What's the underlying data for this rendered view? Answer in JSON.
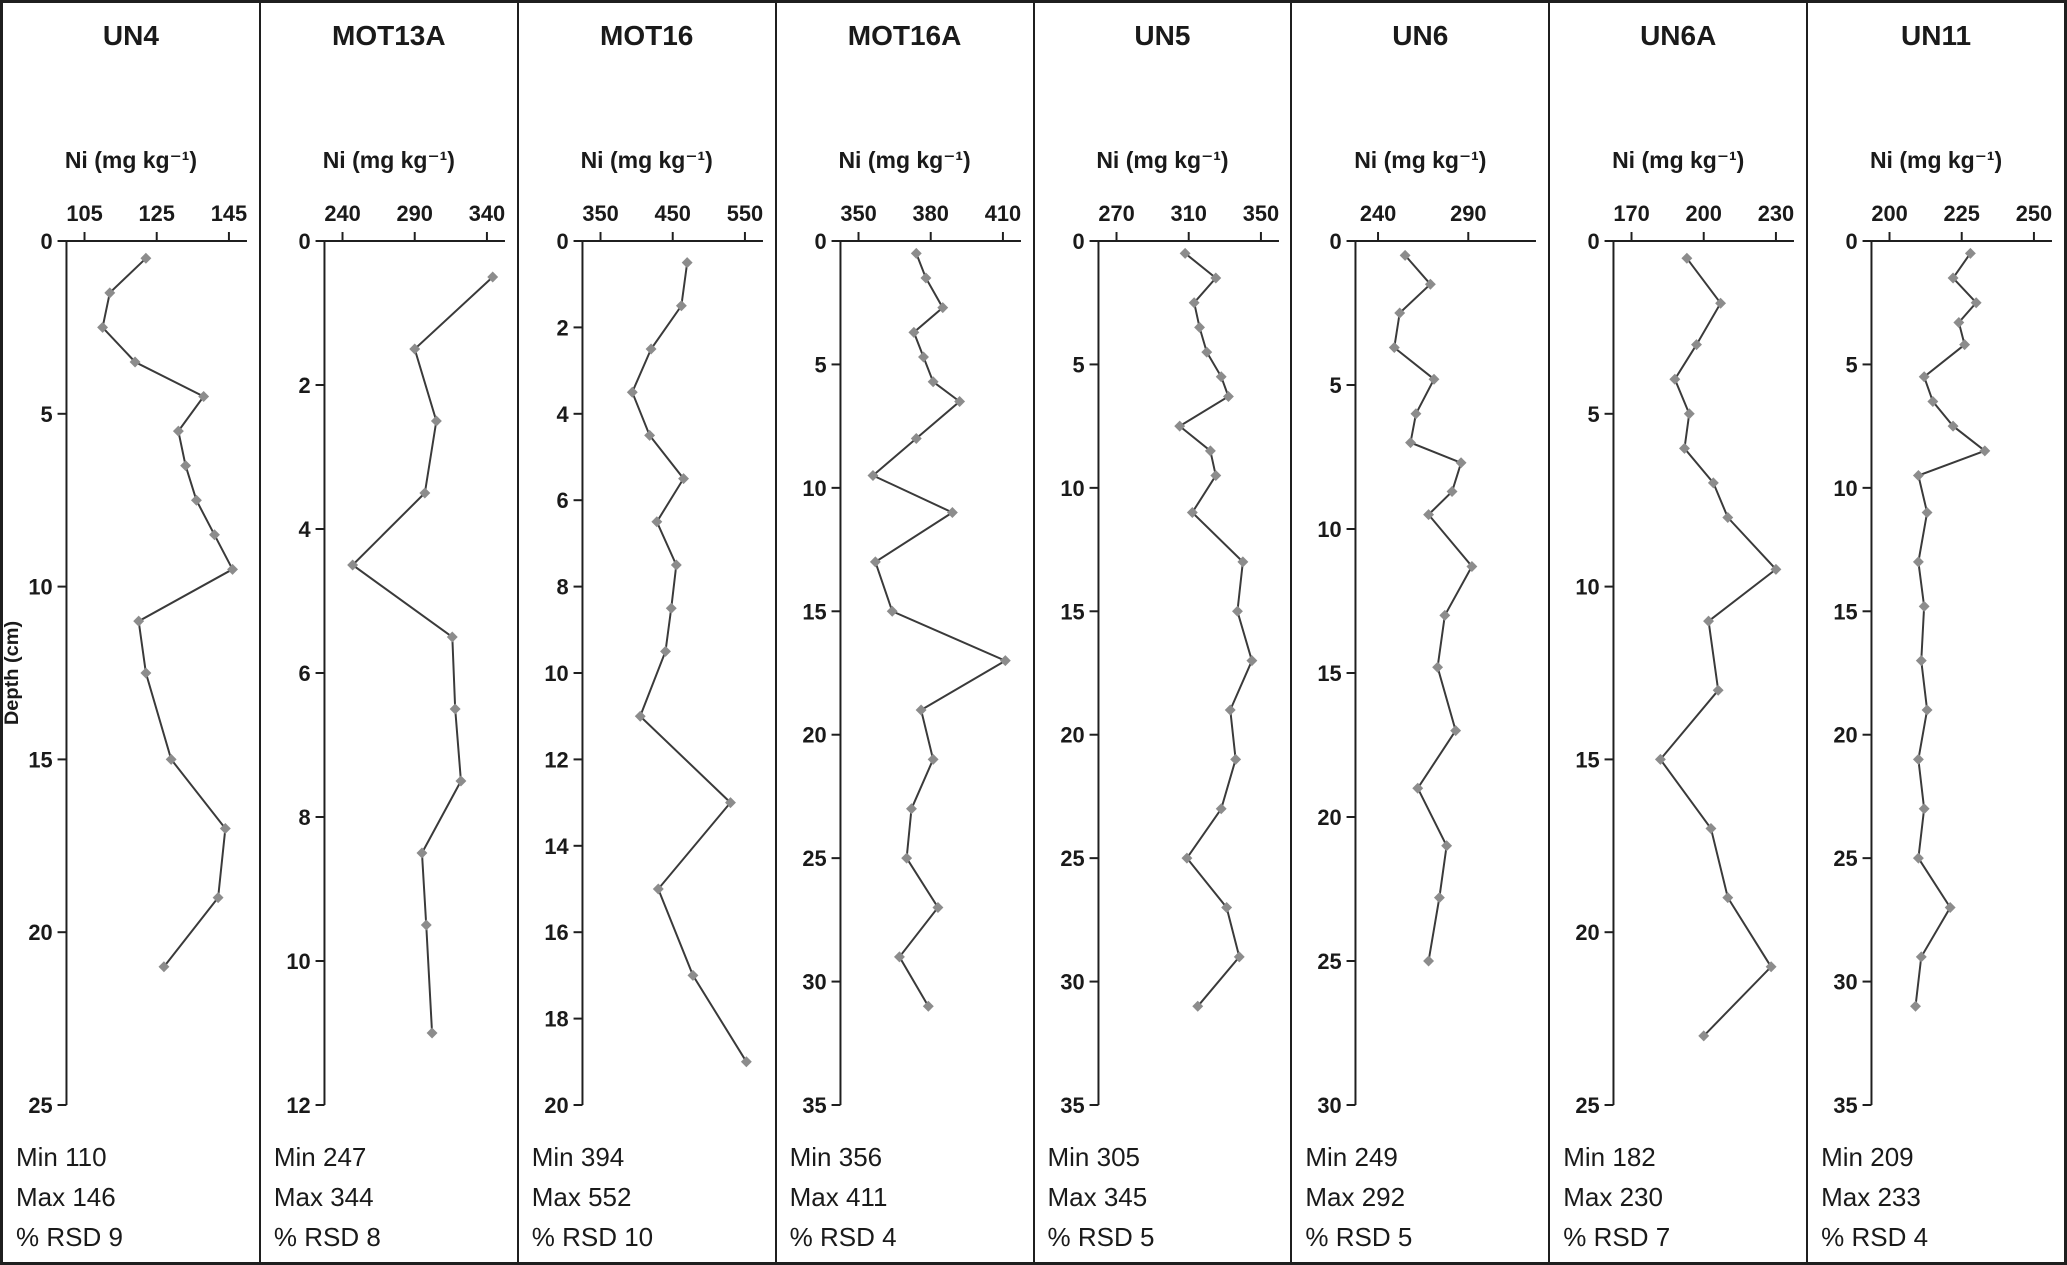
{
  "colors": {
    "axis": "#1f1f1f",
    "line": "#3a3a3a",
    "marker": "#8c8c8c",
    "border": "#1f1f1f",
    "background": "#ffffff"
  },
  "chart_data": [
    {
      "type": "line",
      "title": "UN4",
      "xlabel": "Ni (mg kg⁻¹)",
      "ylabel": "Depth (cm)",
      "x_ticks": [
        105,
        125,
        145
      ],
      "xlim": [
        100,
        150
      ],
      "y_ticks": [
        0,
        5,
        10,
        15,
        20,
        25
      ],
      "ylim": [
        0,
        25
      ],
      "depth": [
        0.5,
        1.5,
        2.5,
        3.5,
        4.5,
        5.5,
        6.5,
        7.5,
        8.5,
        9.5,
        11,
        12.5,
        15,
        17,
        19,
        21
      ],
      "ni": [
        122,
        112,
        110,
        119,
        138,
        131,
        133,
        136,
        141,
        146,
        120,
        122,
        129,
        144,
        142,
        127
      ],
      "stats": {
        "min": "Min 110",
        "max": "Max 146",
        "rsd": "% RSD 9"
      }
    },
    {
      "type": "line",
      "title": "MOT13A",
      "xlabel": "Ni (mg kg⁻¹)",
      "x_ticks": [
        240,
        290,
        340
      ],
      "xlim": [
        227.5,
        352.5
      ],
      "y_ticks": [
        0,
        2,
        4,
        6,
        8,
        10,
        12
      ],
      "ylim": [
        0,
        12
      ],
      "depth": [
        0.5,
        1.5,
        2.5,
        3.5,
        4.5,
        5.5,
        6.5,
        7.5,
        8.5,
        9.5,
        11
      ],
      "ni": [
        344,
        290,
        305,
        297,
        247,
        316,
        318,
        322,
        295,
        298,
        302
      ],
      "stats": {
        "min": "Min 247",
        "max": "Max 344",
        "rsd": "% RSD 8"
      }
    },
    {
      "type": "line",
      "title": "MOT16",
      "xlabel": "Ni (mg kg⁻¹)",
      "x_ticks": [
        350,
        450,
        550
      ],
      "xlim": [
        325,
        575
      ],
      "y_ticks": [
        0,
        2,
        4,
        6,
        8,
        10,
        12,
        14,
        16,
        18,
        20
      ],
      "ylim": [
        0,
        20
      ],
      "depth": [
        0.5,
        1.5,
        2.5,
        3.5,
        4.5,
        5.5,
        6.5,
        7.5,
        8.5,
        9.5,
        11,
        13,
        15,
        17,
        19
      ],
      "ni": [
        470,
        462,
        420,
        394,
        418,
        465,
        428,
        455,
        448,
        440,
        405,
        530,
        430,
        478,
        552
      ],
      "stats": {
        "min": "Min 394",
        "max": "Max 552",
        "rsd": "% RSD 10"
      }
    },
    {
      "type": "line",
      "title": "MOT16A",
      "xlabel": "Ni (mg kg⁻¹)",
      "x_ticks": [
        350,
        380,
        410
      ],
      "xlim": [
        342.5,
        417.5
      ],
      "y_ticks": [
        0,
        5,
        10,
        15,
        20,
        25,
        30,
        35
      ],
      "ylim": [
        0,
        35
      ],
      "depth": [
        0.5,
        1.5,
        2.7,
        3.7,
        4.7,
        5.7,
        6.5,
        8,
        9.5,
        11,
        13,
        15,
        17,
        19,
        21,
        23,
        25,
        27,
        29,
        31
      ],
      "ni": [
        374,
        378,
        385,
        373,
        377,
        381,
        392,
        374,
        356,
        389,
        357,
        364,
        411,
        376,
        381,
        372,
        370,
        383,
        367,
        379
      ],
      "stats": {
        "min": "Min 356",
        "max": "Max 411",
        "rsd": "% RSD 4"
      }
    },
    {
      "type": "line",
      "title": "UN5",
      "xlabel": "Ni (mg kg⁻¹)",
      "x_ticks": [
        270,
        310,
        350
      ],
      "xlim": [
        260,
        360
      ],
      "y_ticks": [
        0,
        5,
        10,
        15,
        20,
        25,
        30,
        35
      ],
      "ylim": [
        0,
        35
      ],
      "depth": [
        0.5,
        1.5,
        2.5,
        3.5,
        4.5,
        5.5,
        6.3,
        7.5,
        8.5,
        9.5,
        11,
        13,
        15,
        17,
        19,
        21,
        23,
        25,
        27,
        29,
        31
      ],
      "ni": [
        308,
        325,
        313,
        316,
        320,
        328,
        332,
        305,
        322,
        325,
        312,
        340,
        337,
        345,
        333,
        336,
        328,
        309,
        331,
        338,
        315
      ],
      "stats": {
        "min": "Min 305",
        "max": "Max 345",
        "rsd": "% RSD 5"
      }
    },
    {
      "type": "line",
      "title": "UN6",
      "xlabel": "Ni (mg kg⁻¹)",
      "x_ticks": [
        240,
        290
      ],
      "xlim": [
        227.5,
        327.5
      ],
      "y_ticks": [
        0,
        5,
        10,
        15,
        20,
        25,
        30
      ],
      "ylim": [
        0,
        30
      ],
      "depth": [
        0.5,
        1.5,
        2.5,
        3.7,
        4.8,
        6,
        7,
        7.7,
        8.7,
        9.5,
        11.3,
        13,
        14.8,
        17,
        19,
        21,
        22.8,
        25
      ],
      "ni": [
        255,
        269,
        252,
        249,
        271,
        261,
        258,
        286,
        281,
        268,
        292,
        277,
        273,
        283,
        262,
        278,
        274,
        268
      ],
      "stats": {
        "min": "Min 249",
        "max": "Max 292",
        "rsd": "% RSD 5"
      }
    },
    {
      "type": "line",
      "title": "UN6A",
      "xlabel": "Ni (mg kg⁻¹)",
      "x_ticks": [
        170,
        200,
        230
      ],
      "xlim": [
        162.5,
        237.5
      ],
      "y_ticks": [
        0,
        5,
        10,
        15,
        20,
        25
      ],
      "ylim": [
        0,
        25
      ],
      "depth": [
        0.5,
        1.8,
        3,
        4,
        5,
        6,
        7,
        8,
        9.5,
        11,
        13,
        15,
        17,
        19,
        21,
        23
      ],
      "ni": [
        193,
        207,
        197,
        188,
        194,
        192,
        204,
        210,
        230,
        202,
        206,
        182,
        203,
        210,
        228,
        200
      ],
      "stats": {
        "min": "Min 182",
        "max": "Max 230",
        "rsd": "% RSD 7"
      }
    },
    {
      "type": "line",
      "title": "UN11",
      "xlabel": "Ni (mg kg⁻¹)",
      "x_ticks": [
        200,
        225,
        250
      ],
      "xlim": [
        193.75,
        256.25
      ],
      "y_ticks": [
        0,
        5,
        10,
        15,
        20,
        25,
        30,
        35
      ],
      "ylim": [
        0,
        35
      ],
      "depth": [
        0.5,
        1.5,
        2.5,
        3.3,
        4.2,
        5.5,
        6.5,
        7.5,
        8.5,
        9.5,
        11,
        13,
        14.8,
        17,
        19,
        21,
        23,
        25,
        27,
        29,
        31
      ],
      "ni": [
        228,
        222,
        230,
        224,
        226,
        212,
        215,
        222,
        233,
        210,
        213,
        210,
        212,
        211,
        213,
        210,
        212,
        210,
        221,
        211,
        209
      ],
      "stats": {
        "min": "Min 209",
        "max": "Max 233",
        "rsd": "% RSD 4"
      }
    }
  ]
}
